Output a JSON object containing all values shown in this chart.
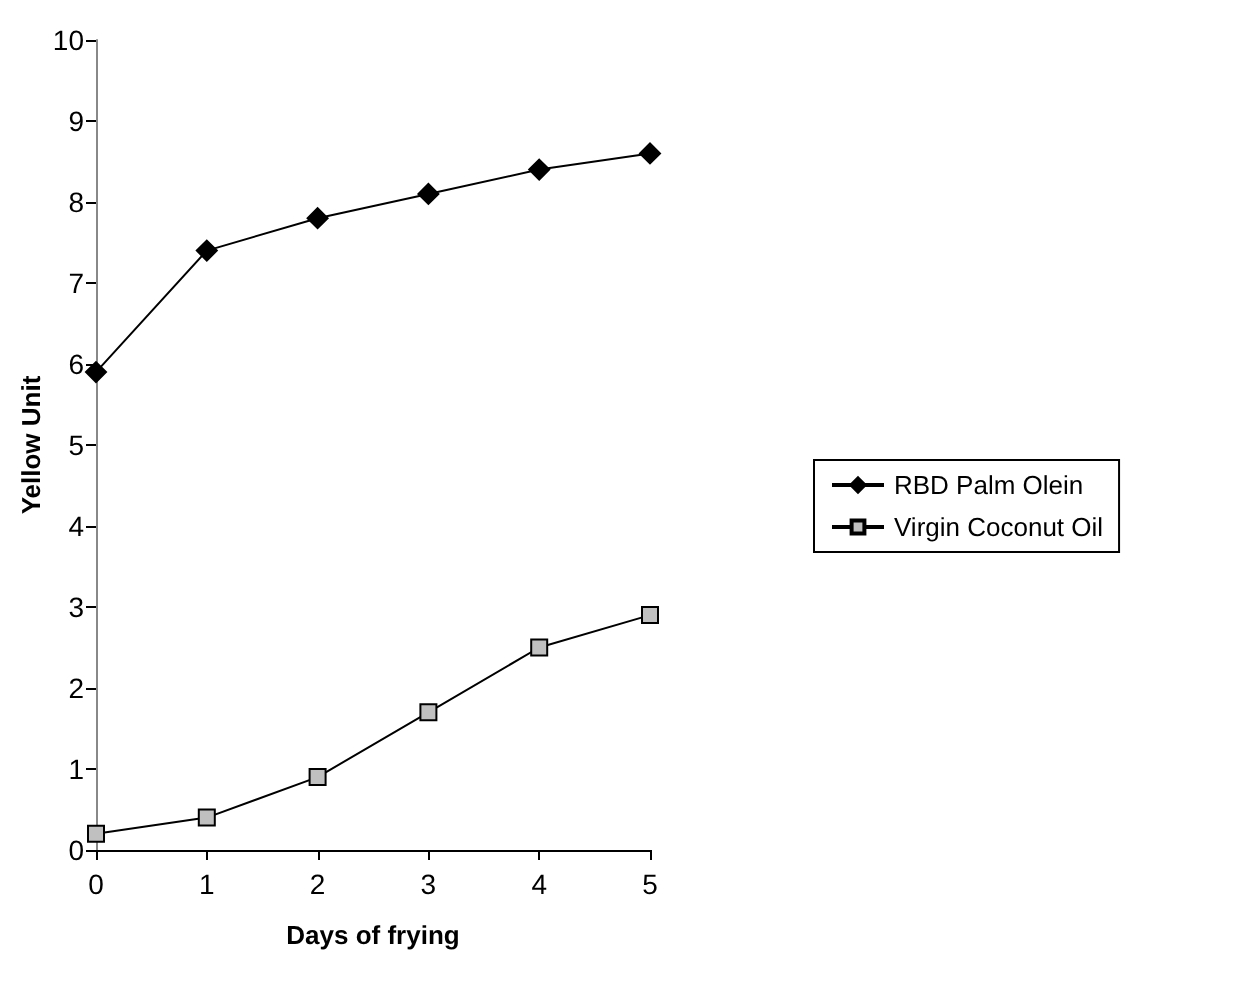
{
  "chart_data": {
    "type": "line",
    "xlabel": "Days of frying",
    "ylabel": "Yellow Unit",
    "x": [
      0,
      1,
      2,
      3,
      4,
      5
    ],
    "series": [
      {
        "name": "RBD Palm Olein",
        "color": "#000000",
        "marker": "diamond",
        "values": [
          5.9,
          7.4,
          7.8,
          8.1,
          8.4,
          8.6
        ]
      },
      {
        "name": "Virgin Coconut Oil",
        "color": "#c0c0c0",
        "marker": "square",
        "values": [
          0.2,
          0.4,
          0.9,
          1.7,
          2.5,
          2.9
        ]
      }
    ],
    "xlim": [
      0,
      5
    ],
    "xticks": [
      0,
      1,
      2,
      3,
      4,
      5
    ],
    "ylim": [
      0,
      10
    ],
    "yticks": [
      0,
      1,
      2,
      3,
      4,
      5,
      6,
      7,
      8,
      9,
      10
    ],
    "grid": false,
    "legend": "right"
  }
}
